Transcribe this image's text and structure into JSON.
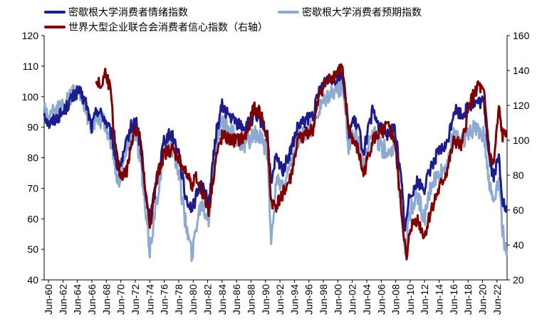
{
  "chart_data": {
    "type": "line",
    "title": "",
    "legend_position": "top-left",
    "grid": false,
    "y_left": {
      "ticks": [
        "40",
        "50",
        "60",
        "70",
        "80",
        "90",
        "100",
        "110",
        "120"
      ],
      "lim": [
        40,
        120
      ]
    },
    "y_right": {
      "ticks": [
        "20",
        "40",
        "60",
        "80",
        "100",
        "120",
        "140",
        "160"
      ],
      "lim": [
        20,
        160
      ]
    },
    "x_ticks": [
      "Jun-60",
      "Jun-62",
      "Jun-64",
      "Jun-66",
      "Jun-68",
      "Jun-70",
      "Jun-72",
      "Jun-74",
      "Jun-76",
      "Jun-78",
      "Jun-80",
      "Jun-82",
      "Jun-84",
      "Jun-86",
      "Jun-88",
      "Jun-90",
      "Jun-92",
      "Jun-94",
      "Jun-96",
      "Jun-98",
      "Jun-00",
      "Jun-02",
      "Jun-04",
      "Jun-06",
      "Jun-08",
      "Jun-10",
      "Jun-12",
      "Jun-14",
      "Jun-16",
      "Jun-18",
      "Jun-20",
      "Jun-22"
    ],
    "x_range": [
      1960.4,
      2022.6
    ],
    "series": [
      {
        "name": "密歇根大学消费者情绪指数",
        "axis": "left",
        "color": "#1c1c8c",
        "x": [
          1960.4,
          1961,
          1962,
          1963,
          1964,
          1965,
          1966,
          1966.8,
          1967.5,
          1968.5,
          1969.5,
          1970.3,
          1971,
          1972,
          1972.8,
          1973.5,
          1974,
          1974.6,
          1975.5,
          1976.5,
          1977.5,
          1978.5,
          1979.3,
          1980.3,
          1980.8,
          1981.5,
          1982.5,
          1983.5,
          1984.3,
          1985.5,
          1986.5,
          1987.5,
          1988.5,
          1989.5,
          1990.4,
          1990.9,
          1991.5,
          1992.5,
          1993.5,
          1994.5,
          1995.5,
          1996.5,
          1997.5,
          1998.5,
          1999.5,
          2000.5,
          2001.3,
          2001.9,
          2002.6,
          2003.3,
          2004.5,
          2005.5,
          2006.5,
          2007.5,
          2008.4,
          2008.9,
          2009.5,
          2010.5,
          2011.5,
          2012.5,
          2013.5,
          2014.5,
          2015.5,
          2016.5,
          2017.5,
          2018.5,
          2019.5,
          2020.3,
          2020.8,
          2021.5,
          2022,
          2022.5
        ],
        "y": [
          95,
          91,
          93,
          95,
          99,
          102,
          98,
          90,
          96,
          93,
          87,
          76,
          80,
          90,
          92,
          80,
          68,
          60,
          72,
          86,
          88,
          82,
          68,
          63,
          67,
          72,
          65,
          88,
          97,
          93,
          91,
          90,
          93,
          92,
          88,
          70,
          80,
          76,
          82,
          90,
          92,
          94,
          103,
          106,
          106,
          108,
          88,
          92,
          90,
          82,
          95,
          90,
          88,
          90,
          72,
          56,
          68,
          72,
          70,
          78,
          82,
          84,
          96,
          94,
          97,
          98,
          98,
          78,
          74,
          80,
          66,
          62
        ]
      },
      {
        "name": "密歇根大学消费者预期指数",
        "axis": "left",
        "color": "#8faad2",
        "x": [
          1960.4,
          1961,
          1962,
          1963,
          1964,
          1965,
          1966,
          1966.8,
          1967.5,
          1968.5,
          1969.5,
          1970.3,
          1971,
          1972,
          1972.8,
          1973.5,
          1974,
          1974.6,
          1975.5,
          1976.5,
          1977.5,
          1978.5,
          1979.3,
          1980.3,
          1980.8,
          1981.5,
          1982.5,
          1983.5,
          1984.3,
          1985.5,
          1986.5,
          1987.5,
          1988.5,
          1989.5,
          1990.4,
          1990.9,
          1991.5,
          1992.5,
          1993.5,
          1994.5,
          1995.5,
          1996.5,
          1997.5,
          1998.5,
          1999.5,
          2000.5,
          2001.3,
          2001.9,
          2002.6,
          2003.3,
          2004.5,
          2005.5,
          2006.5,
          2007.5,
          2008.4,
          2008.9,
          2009.5,
          2010.5,
          2011.5,
          2012.5,
          2013.5,
          2014.5,
          2015.5,
          2016.5,
          2017.5,
          2018.5,
          2019.5,
          2020.3,
          2020.8,
          2021.5,
          2022,
          2022.5
        ],
        "y": [
          97,
          93,
          95,
          97,
          100,
          103,
          96,
          90,
          93,
          91,
          85,
          72,
          78,
          88,
          88,
          75,
          62,
          50,
          66,
          82,
          84,
          76,
          60,
          48,
          58,
          66,
          60,
          84,
          92,
          88,
          86,
          84,
          88,
          86,
          82,
          52,
          72,
          70,
          76,
          86,
          88,
          90,
          96,
          100,
          102,
          104,
          84,
          88,
          86,
          78,
          90,
          84,
          82,
          84,
          64,
          50,
          62,
          68,
          60,
          72,
          74,
          78,
          88,
          86,
          88,
          90,
          88,
          70,
          66,
          74,
          56,
          48
        ]
      },
      {
        "name": "世界大型企业联合会消费者信心指数（右轴）",
        "axis": "right",
        "color": "#800000",
        "x": [
          1967.4,
          1968,
          1968.7,
          1969.3,
          1970,
          1970.6,
          1971.5,
          1972.5,
          1973.3,
          1974,
          1974.6,
          1975.5,
          1976.5,
          1977.5,
          1978.5,
          1979.3,
          1980.3,
          1980.8,
          1981.5,
          1982.5,
          1983.5,
          1984.3,
          1985.5,
          1986.5,
          1987.5,
          1988.5,
          1989.5,
          1990.4,
          1990.9,
          1991.5,
          1992.5,
          1993.5,
          1994.5,
          1995.5,
          1996.5,
          1997.5,
          1998.5,
          1999.5,
          2000.4,
          2001.3,
          2001.9,
          2002.6,
          2003.3,
          2004.5,
          2005.5,
          2006.5,
          2007.5,
          2008.4,
          2009.1,
          2009.6,
          2010.5,
          2011.5,
          2012.5,
          2013.5,
          2014.5,
          2015.5,
          2016.5,
          2017.5,
          2018.7,
          2019.5,
          2020.3,
          2020.8,
          2021.5,
          2022,
          2022.5
        ],
        "y": [
          135,
          130,
          140,
          128,
          95,
          80,
          82,
          108,
          102,
          70,
          50,
          78,
          92,
          95,
          90,
          82,
          75,
          78,
          72,
          60,
          90,
          102,
          100,
          100,
          102,
          118,
          116,
          100,
          65,
          62,
          70,
          78,
          100,
          104,
          106,
          128,
          134,
          138,
          142,
          108,
          100,
          94,
          80,
          100,
          104,
          108,
          100,
          60,
          30,
          50,
          55,
          45,
          62,
          72,
          82,
          100,
          96,
          120,
          132,
          126,
          90,
          86,
          118,
          102,
          106
        ]
      }
    ]
  }
}
